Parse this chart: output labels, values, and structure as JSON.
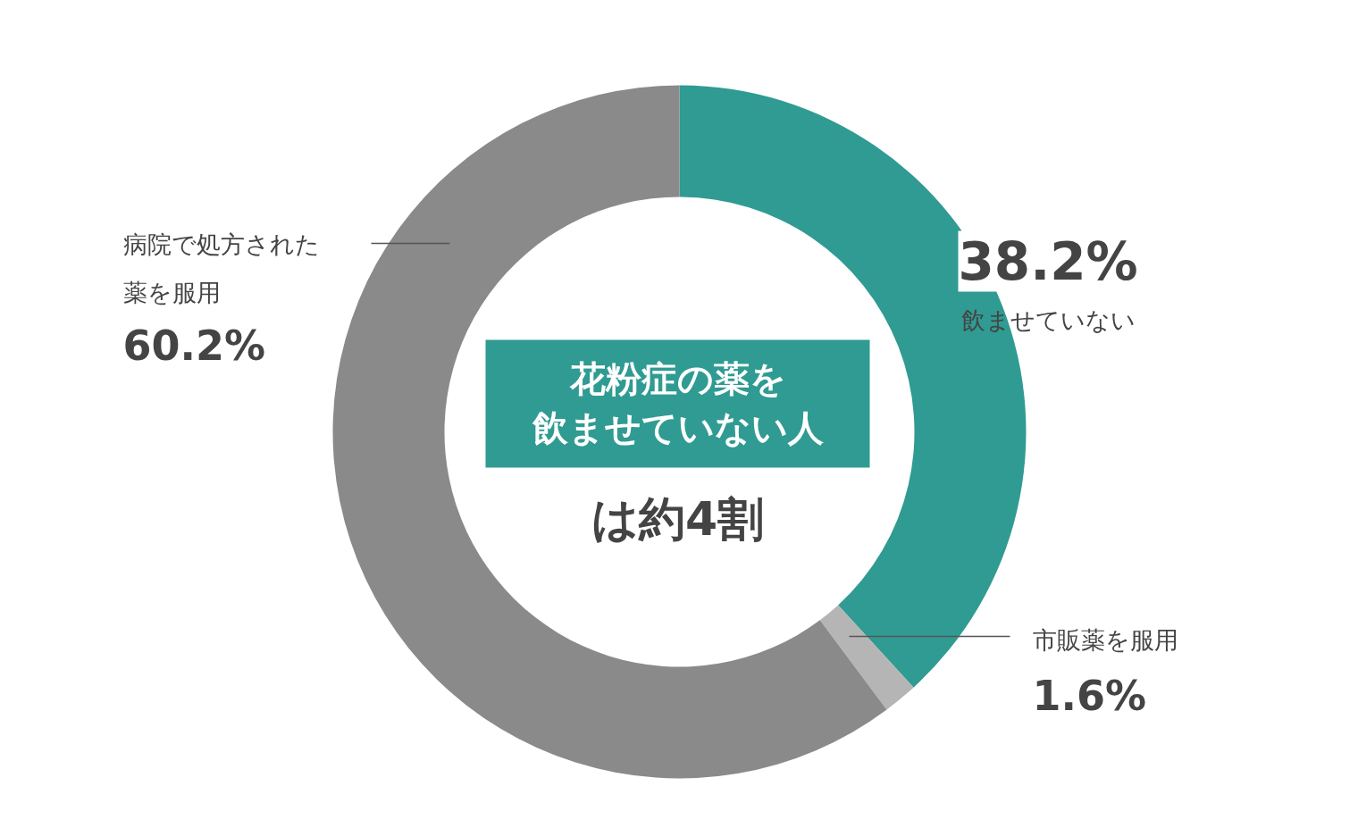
{
  "chart_data": {
    "type": "donut",
    "categories": [
      "飲ませていない",
      "市販薬を服用",
      "病院で処方された薬を服用"
    ],
    "values": [
      38.2,
      1.6,
      60.2
    ],
    "colors": [
      "#309b92",
      "#b5b5b5",
      "#8a8a8a"
    ],
    "value_labels": [
      "38.2%",
      "1.6%",
      "60.2%"
    ],
    "annotations": [
      "花粉症の薬を飲ませていない人",
      "は約4割"
    ]
  }
}
